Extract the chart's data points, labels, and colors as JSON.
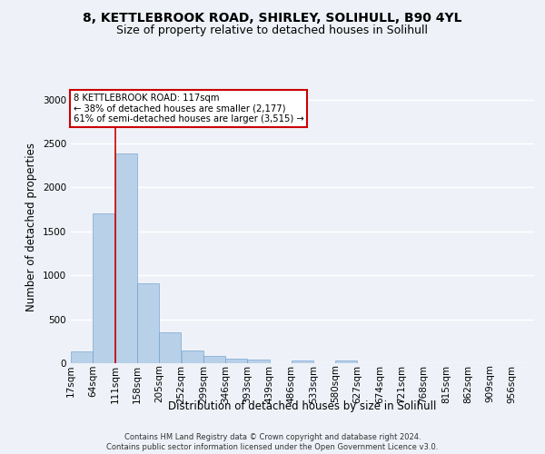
{
  "title_line1": "8, KETTLEBROOK ROAD, SHIRLEY, SOLIHULL, B90 4YL",
  "title_line2": "Size of property relative to detached houses in Solihull",
  "xlabel": "Distribution of detached houses by size in Solihull",
  "ylabel": "Number of detached properties",
  "bar_color": "#b8d0e8",
  "bar_edge_color": "#6699cc",
  "annotation_box_text": "8 KETTLEBROOK ROAD: 117sqm\n← 38% of detached houses are smaller (2,177)\n61% of semi-detached houses are larger (3,515) →",
  "vline_x": 111,
  "vline_color": "#cc0000",
  "categories": [
    "17sqm",
    "64sqm",
    "111sqm",
    "158sqm",
    "205sqm",
    "252sqm",
    "299sqm",
    "346sqm",
    "393sqm",
    "439sqm",
    "486sqm",
    "533sqm",
    "580sqm",
    "627sqm",
    "674sqm",
    "721sqm",
    "768sqm",
    "815sqm",
    "862sqm",
    "909sqm",
    "956sqm"
  ],
  "bin_edges": [
    17,
    64,
    111,
    158,
    205,
    252,
    299,
    346,
    393,
    439,
    486,
    533,
    580,
    627,
    674,
    721,
    768,
    815,
    862,
    909,
    956,
    1003
  ],
  "values": [
    130,
    1700,
    2390,
    910,
    355,
    140,
    80,
    50,
    40,
    0,
    30,
    0,
    30,
    0,
    0,
    0,
    0,
    0,
    0,
    0,
    0
  ],
  "ylim": [
    0,
    3100
  ],
  "yticks": [
    0,
    500,
    1000,
    1500,
    2000,
    2500,
    3000
  ],
  "footer_line1": "Contains HM Land Registry data © Crown copyright and database right 2024.",
  "footer_line2": "Contains public sector information licensed under the Open Government Licence v3.0.",
  "background_color": "#eef2f8",
  "grid_color": "#ffffff",
  "title_fontsize": 10,
  "subtitle_fontsize": 9,
  "axis_fontsize": 8.5,
  "tick_fontsize": 7.5,
  "footer_fontsize": 6.0
}
